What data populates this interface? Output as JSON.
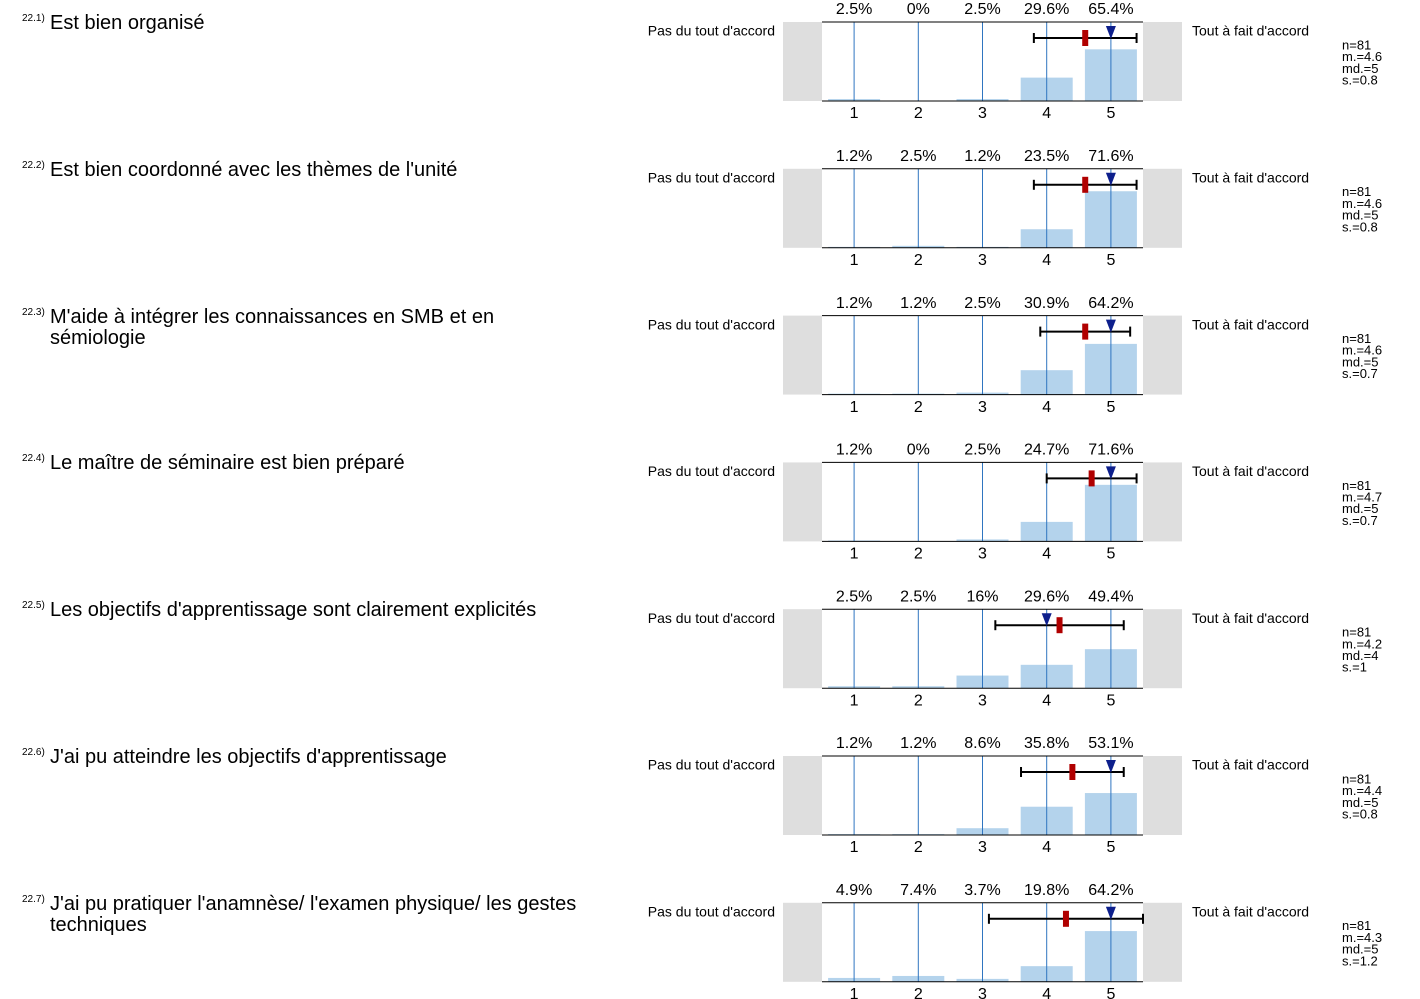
{
  "chart_data": [
    {
      "type": "bar",
      "number": "22.1)",
      "title": "Est bien organisé",
      "left_label": "Pas du tout d'accord",
      "right_label": "Tout à fait d'accord",
      "x": [
        1,
        2,
        3,
        4,
        5
      ],
      "values": [
        2.5,
        0,
        2.5,
        29.6,
        65.4
      ],
      "value_labels": [
        "2.5%",
        "0%",
        "2.5%",
        "29.6%",
        "65.4%"
      ],
      "xlim": [
        0.5,
        5.5
      ],
      "xticks": [
        1,
        2,
        3,
        4,
        5
      ],
      "ylim": [
        0,
        100
      ],
      "color": "#b4d3ec",
      "grid": true,
      "stats": {
        "n": 81,
        "mean": 4.6,
        "median": 5,
        "sd": 0.8
      },
      "stat_labels": {
        "n": "n=81",
        "mean": "m.=4.6",
        "median": "md.=5",
        "sd": "s.=0.8"
      }
    },
    {
      "type": "bar",
      "number": "22.2)",
      "title": "Est bien coordonné avec les thèmes de l'unité",
      "left_label": "Pas du tout d'accord",
      "right_label": "Tout à fait d'accord",
      "x": [
        1,
        2,
        3,
        4,
        5
      ],
      "values": [
        1.2,
        2.5,
        1.2,
        23.5,
        71.6
      ],
      "value_labels": [
        "1.2%",
        "2.5%",
        "1.2%",
        "23.5%",
        "71.6%"
      ],
      "xlim": [
        0.5,
        5.5
      ],
      "xticks": [
        1,
        2,
        3,
        4,
        5
      ],
      "ylim": [
        0,
        100
      ],
      "color": "#b4d3ec",
      "grid": true,
      "stats": {
        "n": 81,
        "mean": 4.6,
        "median": 5,
        "sd": 0.8
      },
      "stat_labels": {
        "n": "n=81",
        "mean": "m.=4.6",
        "median": "md.=5",
        "sd": "s.=0.8"
      }
    },
    {
      "type": "bar",
      "number": "22.3)",
      "title": "M'aide à intégrer les connaissances en SMB et en sémiologie",
      "left_label": "Pas du tout d'accord",
      "right_label": "Tout à fait d'accord",
      "x": [
        1,
        2,
        3,
        4,
        5
      ],
      "values": [
        1.2,
        1.2,
        2.5,
        30.9,
        64.2
      ],
      "value_labels": [
        "1.2%",
        "1.2%",
        "2.5%",
        "30.9%",
        "64.2%"
      ],
      "xlim": [
        0.5,
        5.5
      ],
      "xticks": [
        1,
        2,
        3,
        4,
        5
      ],
      "ylim": [
        0,
        100
      ],
      "color": "#b4d3ec",
      "grid": true,
      "stats": {
        "n": 81,
        "mean": 4.6,
        "median": 5,
        "sd": 0.7
      },
      "stat_labels": {
        "n": "n=81",
        "mean": "m.=4.6",
        "median": "md.=5",
        "sd": "s.=0.7"
      }
    },
    {
      "type": "bar",
      "number": "22.4)",
      "title": "Le maître de séminaire est bien préparé",
      "left_label": "Pas du tout d'accord",
      "right_label": "Tout à fait d'accord",
      "x": [
        1,
        2,
        3,
        4,
        5
      ],
      "values": [
        1.2,
        0,
        2.5,
        24.7,
        71.6
      ],
      "value_labels": [
        "1.2%",
        "0%",
        "2.5%",
        "24.7%",
        "71.6%"
      ],
      "xlim": [
        0.5,
        5.5
      ],
      "xticks": [
        1,
        2,
        3,
        4,
        5
      ],
      "ylim": [
        0,
        100
      ],
      "color": "#b4d3ec",
      "grid": true,
      "stats": {
        "n": 81,
        "mean": 4.7,
        "median": 5,
        "sd": 0.7
      },
      "stat_labels": {
        "n": "n=81",
        "mean": "m.=4.7",
        "median": "md.=5",
        "sd": "s.=0.7"
      }
    },
    {
      "type": "bar",
      "number": "22.5)",
      "title": "Les objectifs d'apprentissage sont clairement explicités",
      "left_label": "Pas du tout d'accord",
      "right_label": "Tout à fait d'accord",
      "x": [
        1,
        2,
        3,
        4,
        5
      ],
      "values": [
        2.5,
        2.5,
        16,
        29.6,
        49.4
      ],
      "value_labels": [
        "2.5%",
        "2.5%",
        "16%",
        "29.6%",
        "49.4%"
      ],
      "xlim": [
        0.5,
        5.5
      ],
      "xticks": [
        1,
        2,
        3,
        4,
        5
      ],
      "ylim": [
        0,
        100
      ],
      "color": "#b4d3ec",
      "grid": true,
      "stats": {
        "n": 81,
        "mean": 4.2,
        "median": 4,
        "sd": 1
      },
      "stat_labels": {
        "n": "n=81",
        "mean": "m.=4.2",
        "median": "md.=4",
        "sd": "s.=1"
      }
    },
    {
      "type": "bar",
      "number": "22.6)",
      "title": "J'ai pu atteindre les objectifs d'apprentissage",
      "left_label": "Pas du tout d'accord",
      "right_label": "Tout à fait d'accord",
      "x": [
        1,
        2,
        3,
        4,
        5
      ],
      "values": [
        1.2,
        1.2,
        8.6,
        35.8,
        53.1
      ],
      "value_labels": [
        "1.2%",
        "1.2%",
        "8.6%",
        "35.8%",
        "53.1%"
      ],
      "xlim": [
        0.5,
        5.5
      ],
      "xticks": [
        1,
        2,
        3,
        4,
        5
      ],
      "ylim": [
        0,
        100
      ],
      "color": "#b4d3ec",
      "grid": true,
      "stats": {
        "n": 81,
        "mean": 4.4,
        "median": 5,
        "sd": 0.8
      },
      "stat_labels": {
        "n": "n=81",
        "mean": "m.=4.4",
        "median": "md.=5",
        "sd": "s.=0.8"
      }
    },
    {
      "type": "bar",
      "number": "22.7)",
      "title": "J'ai pu pratiquer l'anamnèse/ l'examen physique/ les gestes techniques",
      "left_label": "Pas du tout d'accord",
      "right_label": "Tout à fait d'accord",
      "x": [
        1,
        2,
        3,
        4,
        5
      ],
      "values": [
        4.9,
        7.4,
        3.7,
        19.8,
        64.2
      ],
      "value_labels": [
        "4.9%",
        "7.4%",
        "3.7%",
        "19.8%",
        "64.2%"
      ],
      "xlim": [
        0.5,
        5.5
      ],
      "xticks": [
        1,
        2,
        3,
        4,
        5
      ],
      "ylim": [
        0,
        100
      ],
      "color": "#b4d3ec",
      "grid": true,
      "stats": {
        "n": 81,
        "mean": 4.3,
        "median": 5,
        "sd": 1.2
      },
      "stat_labels": {
        "n": "n=81",
        "mean": "m.=4.3",
        "median": "md.=5",
        "sd": "s.=1.2"
      }
    }
  ]
}
